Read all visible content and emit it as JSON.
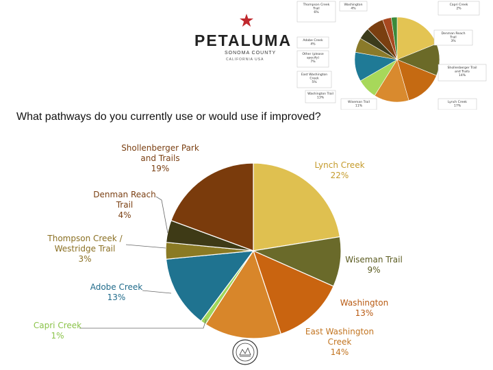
{
  "logo": {
    "wordmark": "PETALUMA",
    "subtitle": "SONOMA COUNTY",
    "tagline": "CALIFORNIA USA",
    "icon": "star-icon",
    "star_color": "#c0282d"
  },
  "question": "What pathways do you currently use or would use if improved?",
  "thumbnail": {
    "labels": [
      {
        "name": "Thompson Creek Trail",
        "text": "Thompson Creek\nTrail\n6%"
      },
      {
        "name": "Washington",
        "text": "Washington\n4%"
      },
      {
        "name": "Capri Creek",
        "text": "Capri Creek\n2%"
      },
      {
        "name": "Denman Reach Trail",
        "text": "Denman Reach\nTrail\n3%"
      },
      {
        "name": "Adobe Creek",
        "text": "Adobe Creek\n4%"
      },
      {
        "name": "Other",
        "text": "Other (please\nspecify)\n7%"
      },
      {
        "name": "East Washington Creek",
        "text": "East Washington\nCreek\n5%"
      },
      {
        "name": "Shollenberger Trail and Trails",
        "text": "Shollenberger Trail\nand Trails\n14%"
      },
      {
        "name": "Washington Trail",
        "text": "Washington Trail\n13%"
      },
      {
        "name": "Wiseman Trail",
        "text": "Wiseman Trail\n11%"
      },
      {
        "name": "Lynch Creek",
        "text": "Lynch Creek\n17%"
      }
    ],
    "slices": [
      {
        "value": 17,
        "color": "#e3c453"
      },
      {
        "value": 11,
        "color": "#6b6a28"
      },
      {
        "value": 13,
        "color": "#c56a12"
      },
      {
        "value": 12,
        "color": "#d98a2e"
      },
      {
        "value": 7,
        "color": "#a7d85a"
      },
      {
        "value": 10,
        "color": "#1f7a96"
      },
      {
        "value": 5,
        "color": "#8a7a2a"
      },
      {
        "value": 4,
        "color": "#3c3c1c"
      },
      {
        "value": 6,
        "color": "#7a3f10"
      },
      {
        "value": 3,
        "color": "#a84820"
      },
      {
        "value": 2,
        "color": "#3b8a3a"
      }
    ]
  },
  "chart_data": {
    "type": "pie",
    "title": "What pathways do you currently use or would use if improved?",
    "slices": [
      {
        "label": "Lynch Creek",
        "value": 22,
        "value_label": "22%",
        "color": "#dfc050",
        "text_color": "#c49a2a"
      },
      {
        "label": "Wiseman Trail",
        "value": 9,
        "value_label": "9%",
        "color": "#6a6a2a",
        "text_color": "#5a5a1f"
      },
      {
        "label": "Washington",
        "value": 13,
        "value_label": "13%",
        "color": "#c96410",
        "text_color": "#b85a12"
      },
      {
        "label": "East Washington Creek",
        "value": 14,
        "value_label": "14%",
        "color": "#d8862a",
        "text_color": "#c27420"
      },
      {
        "label": "Capri Creek",
        "value": 1,
        "value_label": "1%",
        "color": "#9fd65a",
        "text_color": "#8bc34a"
      },
      {
        "label": "Adobe Creek",
        "value": 13,
        "value_label": "13%",
        "color": "#1f7390",
        "text_color": "#1f6a8a"
      },
      {
        "label": "Thompson Creek / Westridge Trail",
        "value": 3,
        "value_label": "3%",
        "color": "#8a7a24",
        "text_color": "#8a6f22"
      },
      {
        "label": "Denman Reach Trail",
        "value": 4,
        "value_label": "4%",
        "color": "#3e3a16",
        "text_color": "#7a3f12"
      },
      {
        "label": "Shollenberger Park and Trails",
        "value": 19,
        "value_label": "19%",
        "color": "#7a3b0c",
        "text_color": "#7a3f12"
      }
    ],
    "labels_display": [
      {
        "lines": [
          "Lynch Creek",
          "22%"
        ]
      },
      {
        "lines": [
          "Wiseman Trail",
          "9%"
        ]
      },
      {
        "lines": [
          "Washington",
          "13%"
        ]
      },
      {
        "lines": [
          "East Washington",
          "Creek",
          "14%"
        ]
      },
      {
        "lines": [
          "Capri Creek",
          "1%"
        ]
      },
      {
        "lines": [
          "Adobe Creek",
          "13%"
        ]
      },
      {
        "lines": [
          "Thompson Creek /",
          "Westridge Trail",
          "3%"
        ]
      },
      {
        "lines": [
          "Denman Reach",
          "Trail",
          "4%"
        ]
      },
      {
        "lines": [
          "Shollenberger Park",
          "and Trails",
          "19%"
        ]
      }
    ],
    "legend": "none"
  },
  "seal": {
    "icon": "city-seal-icon"
  }
}
